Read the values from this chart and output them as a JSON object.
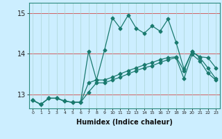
{
  "xlabel": "Humidex (Indice chaleur)",
  "bg_color": "#cceeff",
  "line_color": "#1a7a6e",
  "xlim": [
    -0.5,
    23.5
  ],
  "ylim": [
    12.65,
    15.25
  ],
  "yticks": [
    13,
    14,
    15
  ],
  "xticks": [
    0,
    1,
    2,
    3,
    4,
    5,
    6,
    7,
    8,
    9,
    10,
    11,
    12,
    13,
    14,
    15,
    16,
    17,
    18,
    19,
    20,
    21,
    22,
    23
  ],
  "series1_x": [
    0,
    1,
    2,
    3,
    4,
    5,
    6,
    7,
    8,
    9,
    10,
    11,
    12,
    13,
    14,
    15,
    16,
    17,
    18,
    19,
    20,
    21,
    22,
    23
  ],
  "series1_y": [
    12.85,
    12.75,
    12.9,
    12.9,
    12.83,
    12.8,
    12.8,
    14.05,
    13.35,
    14.08,
    14.88,
    14.62,
    14.95,
    14.62,
    14.5,
    14.68,
    14.55,
    14.85,
    14.28,
    13.62,
    14.05,
    13.92,
    13.9,
    13.65
  ],
  "series2_x": [
    0,
    1,
    2,
    3,
    4,
    5,
    6,
    7,
    8,
    9,
    10,
    11,
    12,
    13,
    14,
    15,
    16,
    17,
    18,
    19,
    20,
    21,
    22,
    23
  ],
  "series2_y": [
    12.85,
    12.75,
    12.9,
    12.9,
    12.83,
    12.8,
    12.8,
    13.28,
    13.35,
    13.35,
    13.42,
    13.5,
    13.58,
    13.65,
    13.72,
    13.78,
    13.85,
    13.9,
    13.92,
    13.58,
    14.05,
    13.9,
    13.65,
    13.38
  ],
  "series3_x": [
    0,
    1,
    2,
    3,
    4,
    5,
    6,
    7,
    8,
    9,
    10,
    11,
    12,
    13,
    14,
    15,
    16,
    17,
    18,
    19,
    20,
    21,
    22,
    23
  ],
  "series3_y": [
    12.85,
    12.75,
    12.9,
    12.9,
    12.83,
    12.8,
    12.8,
    13.05,
    13.28,
    13.28,
    13.35,
    13.42,
    13.5,
    13.58,
    13.65,
    13.7,
    13.78,
    13.85,
    13.9,
    13.38,
    13.98,
    13.82,
    13.52,
    13.35
  ]
}
